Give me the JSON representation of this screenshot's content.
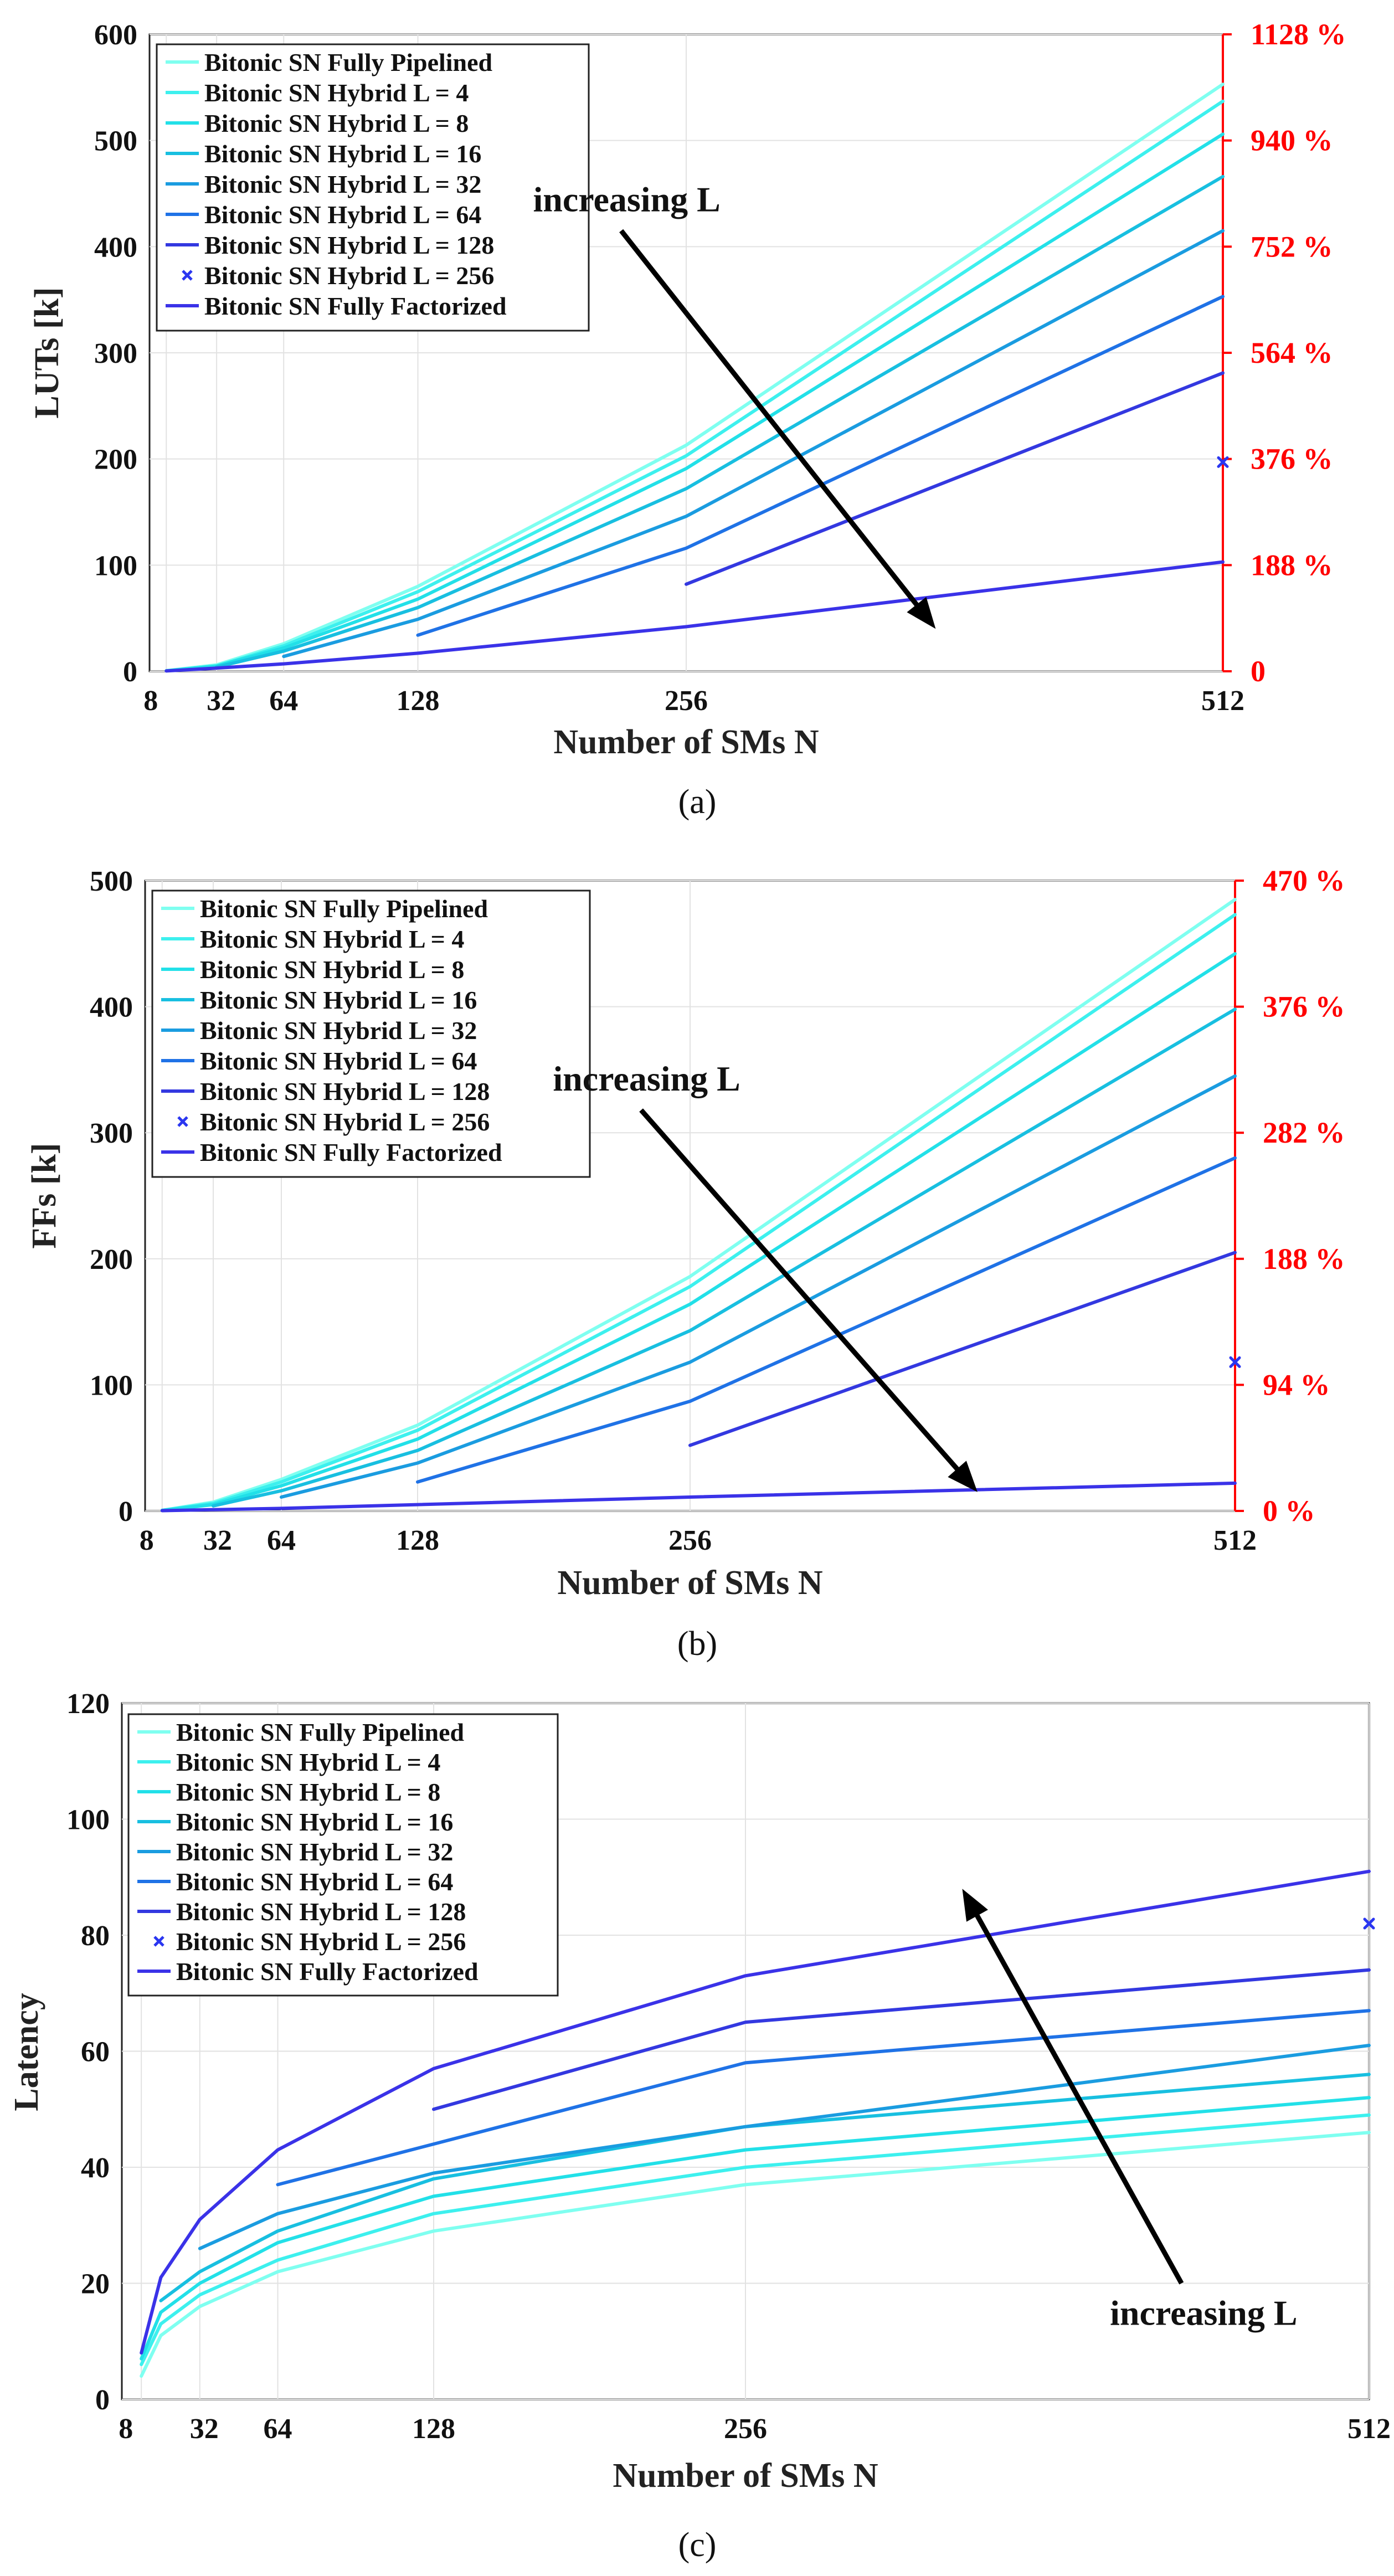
{
  "series_colors": [
    "#7FFFF0",
    "#3DF0EE",
    "#22E0E8",
    "#18BFE0",
    "#1A9CE0",
    "#1F72E6",
    "#3338E0",
    "#2A36F0",
    "#3A32E8"
  ],
  "chart_data": [
    {
      "id": "a",
      "type": "line",
      "caption": "(a)",
      "xlabel": "Number of SMs N",
      "ylabel": "LUTs [k]",
      "xlim": [
        0,
        512
      ],
      "ylim": [
        0,
        600
      ],
      "x_ticks": [
        8,
        32,
        64,
        128,
        256,
        512
      ],
      "y_ticks": [
        0,
        100,
        200,
        300,
        400,
        500,
        600
      ],
      "right_axis_ticks": [
        "0",
        "188 %",
        "376 %",
        "564 %",
        "752 %",
        "940 %",
        "1128 %"
      ],
      "legend_position": "top-left",
      "annotation": {
        "text": "increasing L",
        "arrow": "down-right",
        "from": [
          225,
          415
        ],
        "to": [
          375,
          40
        ]
      },
      "series": [
        {
          "name": "Bitonic SN Fully Pipelined",
          "marker": "line",
          "x": [
            8,
            32,
            64,
            128,
            256,
            512
          ],
          "y": [
            0.5,
            6,
            26,
            80,
            213,
            553
          ]
        },
        {
          "name": "Bitonic SN Hybrid L = 4",
          "marker": "line",
          "x": [
            8,
            32,
            64,
            128,
            256,
            512
          ],
          "y": [
            0.5,
            5,
            24,
            75,
            203,
            537
          ]
        },
        {
          "name": "Bitonic SN Hybrid L = 8",
          "marker": "line",
          "x": [
            8,
            32,
            64,
            128,
            256,
            512
          ],
          "y": [
            0.4,
            5,
            22,
            68,
            191,
            506
          ]
        },
        {
          "name": "Bitonic SN Hybrid L = 16",
          "marker": "line",
          "x": [
            32,
            64,
            128,
            256,
            512
          ],
          "y": [
            4,
            19,
            60,
            172,
            466
          ]
        },
        {
          "name": "Bitonic SN Hybrid L = 32",
          "marker": "line",
          "x": [
            64,
            128,
            256,
            512
          ],
          "y": [
            14,
            49,
            146,
            415
          ]
        },
        {
          "name": "Bitonic SN Hybrid L = 64",
          "marker": "line",
          "x": [
            128,
            256,
            512
          ],
          "y": [
            34,
            116,
            353
          ]
        },
        {
          "name": "Bitonic SN Hybrid L = 128",
          "marker": "line",
          "x": [
            256,
            512
          ],
          "y": [
            82,
            281
          ]
        },
        {
          "name": "Bitonic SN Hybrid L = 256",
          "marker": "x",
          "x": [
            512
          ],
          "y": [
            197
          ]
        },
        {
          "name": "Bitonic SN Fully Factorized",
          "marker": "line",
          "x": [
            8,
            32,
            64,
            128,
            256,
            512
          ],
          "y": [
            0.3,
            3,
            7,
            17,
            42,
            103
          ]
        }
      ]
    },
    {
      "id": "b",
      "type": "line",
      "caption": "(b)",
      "xlabel": "Number of SMs N",
      "ylabel": "FFs [k]",
      "xlim": [
        0,
        512
      ],
      "ylim": [
        0,
        500
      ],
      "x_ticks": [
        8,
        32,
        64,
        128,
        256,
        512
      ],
      "y_ticks": [
        0,
        100,
        200,
        300,
        400,
        500
      ],
      "right_axis_ticks": [
        "0 %",
        "94 %",
        "188 %",
        "282 %",
        "376 %",
        "470 %"
      ],
      "legend_position": "top-left",
      "annotation": {
        "text": "increasing L",
        "arrow": "down-right",
        "from": [
          233,
          318
        ],
        "to": [
          391,
          15
        ]
      },
      "series": [
        {
          "name": "Bitonic SN Fully Pipelined",
          "marker": "line",
          "x": [
            8,
            32,
            64,
            128,
            256,
            512
          ],
          "y": [
            0.5,
            7,
            25,
            68,
            186,
            485
          ]
        },
        {
          "name": "Bitonic SN Hybrid L = 4",
          "marker": "line",
          "x": [
            8,
            32,
            64,
            128,
            256,
            512
          ],
          "y": [
            0.5,
            6,
            23,
            64,
            178,
            473
          ]
        },
        {
          "name": "Bitonic SN Hybrid L = 8",
          "marker": "line",
          "x": [
            8,
            32,
            64,
            128,
            256,
            512
          ],
          "y": [
            0.4,
            5,
            20,
            57,
            164,
            442
          ]
        },
        {
          "name": "Bitonic SN Hybrid L = 16",
          "marker": "line",
          "x": [
            32,
            64,
            128,
            256,
            512
          ],
          "y": [
            4,
            16,
            48,
            143,
            398
          ]
        },
        {
          "name": "Bitonic SN Hybrid L = 32",
          "marker": "line",
          "x": [
            64,
            128,
            256,
            512
          ],
          "y": [
            11,
            38,
            118,
            345
          ]
        },
        {
          "name": "Bitonic SN Hybrid L = 64",
          "marker": "line",
          "x": [
            128,
            256,
            512
          ],
          "y": [
            23,
            87,
            280
          ]
        },
        {
          "name": "Bitonic SN Hybrid L = 128",
          "marker": "line",
          "x": [
            256,
            512
          ],
          "y": [
            52,
            205
          ]
        },
        {
          "name": "Bitonic SN Hybrid L = 256",
          "marker": "x",
          "x": [
            512
          ],
          "y": [
            118
          ]
        },
        {
          "name": "Bitonic SN Fully Factorized",
          "marker": "line",
          "x": [
            8,
            32,
            64,
            128,
            256,
            512
          ],
          "y": [
            0.2,
            1,
            2,
            5,
            11,
            22
          ]
        }
      ]
    },
    {
      "id": "c",
      "type": "line",
      "caption": "(c)",
      "xlabel": "Number of SMs N",
      "ylabel": "Latency",
      "xlim": [
        0,
        512
      ],
      "ylim": [
        0,
        120
      ],
      "x_ticks": [
        8,
        32,
        64,
        128,
        256,
        512
      ],
      "y_ticks": [
        0,
        20,
        40,
        60,
        80,
        100,
        120
      ],
      "right_axis_ticks": [],
      "legend_position": "top-left",
      "annotation": {
        "text": "increasing L",
        "arrow": "up-left",
        "from": [
          435,
          20
        ],
        "to": [
          345,
          88
        ]
      },
      "series": [
        {
          "name": "Bitonic SN Fully Pipelined",
          "marker": "line",
          "x": [
            8,
            16,
            32,
            64,
            128,
            256,
            512
          ],
          "y": [
            4,
            11,
            16,
            22,
            29,
            37,
            46
          ]
        },
        {
          "name": "Bitonic SN Hybrid L = 4",
          "marker": "line",
          "x": [
            8,
            16,
            32,
            64,
            128,
            256,
            512
          ],
          "y": [
            6,
            13,
            18,
            24,
            32,
            40,
            49
          ]
        },
        {
          "name": "Bitonic SN Hybrid L = 8",
          "marker": "line",
          "x": [
            8,
            16,
            32,
            64,
            128,
            256,
            512
          ],
          "y": [
            7,
            15,
            20,
            27,
            35,
            43,
            52
          ]
        },
        {
          "name": "Bitonic SN Hybrid L = 16",
          "marker": "line",
          "x": [
            16,
            32,
            64,
            128,
            256,
            512
          ],
          "y": [
            17,
            22,
            29,
            38,
            47,
            56
          ]
        },
        {
          "name": "Bitonic SN Hybrid L = 32",
          "marker": "line",
          "x": [
            32,
            64,
            128,
            256,
            512
          ],
          "y": [
            26,
            32,
            39,
            47,
            61
          ]
        },
        {
          "name": "Bitonic SN Hybrid L = 64",
          "marker": "line",
          "x": [
            64,
            128,
            256,
            512
          ],
          "y": [
            37,
            44,
            58,
            67
          ]
        },
        {
          "name": "Bitonic SN Hybrid L = 128",
          "marker": "line",
          "x": [
            128,
            256,
            512
          ],
          "y": [
            50,
            65,
            74
          ]
        },
        {
          "name": "Bitonic SN Hybrid L = 256",
          "marker": "x",
          "x": [
            512
          ],
          "y": [
            82
          ]
        },
        {
          "name": "Bitonic SN Fully Factorized",
          "marker": "line",
          "x": [
            8,
            16,
            32,
            64,
            128,
            256,
            512
          ],
          "y": [
            8,
            21,
            31,
            43,
            57,
            73,
            91
          ]
        }
      ]
    }
  ]
}
